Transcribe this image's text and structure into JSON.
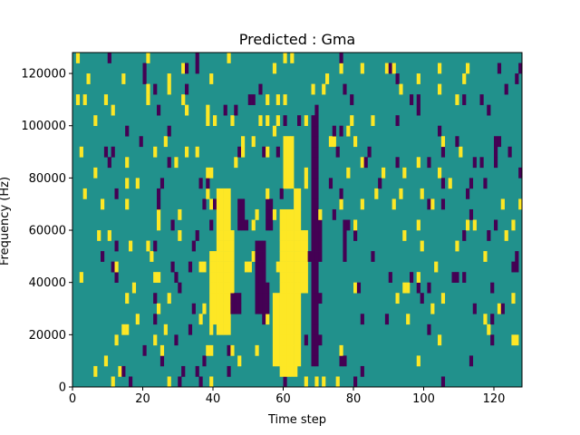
{
  "chart_data": {
    "type": "heatmap",
    "title": "Predicted : Gma",
    "xlabel": "Time step",
    "ylabel": "Frequency (Hz)",
    "xlim": [
      0,
      128
    ],
    "ylim": [
      0,
      128000
    ],
    "xticks": [
      0,
      20,
      40,
      60,
      80,
      100,
      120
    ],
    "yticks": [
      0,
      20000,
      40000,
      60000,
      80000,
      100000,
      120000
    ],
    "ytick_labels": [
      "0",
      "20000",
      "40000",
      "60000",
      "80000",
      "100000",
      "120000"
    ],
    "colormap": "viridis",
    "colors": {
      "low": "#440154",
      "mid": "#21918c",
      "high": "#fde725"
    },
    "legend": "none",
    "grid": false,
    "time_steps": 128,
    "frequency_bins": 32,
    "dominant_value": "mid",
    "high_blocks": [
      {
        "t": [
          41,
          45
        ],
        "f": [
          20000,
          74000
        ]
      },
      {
        "t": [
          39,
          41
        ],
        "f": [
          26000,
          52000
        ]
      },
      {
        "t": [
          44,
          46
        ],
        "f": [
          30000,
          58000
        ]
      },
      {
        "t": [
          59,
          64
        ],
        "f": [
          4000,
          66000
        ]
      },
      {
        "t": [
          57,
          59
        ],
        "f": [
          10000,
          34000
        ]
      },
      {
        "t": [
          63,
          65
        ],
        "f": [
          8000,
          74000
        ]
      },
      {
        "t": [
          60,
          63
        ],
        "f": [
          78000,
          94000
        ]
      },
      {
        "t": [
          65,
          67
        ],
        "f": [
          36000,
          58000
        ]
      }
    ],
    "low_blocks": [
      {
        "t": [
          68,
          70
        ],
        "f": [
          8000,
          104000
        ]
      },
      {
        "t": [
          70,
          71
        ],
        "f": [
          48000,
          64000
        ]
      },
      {
        "t": [
          52,
          55
        ],
        "f": [
          28000,
          54000
        ]
      },
      {
        "t": [
          54,
          56
        ],
        "f": [
          28000,
          40000
        ]
      },
      {
        "t": [
          45,
          48
        ],
        "f": [
          30000,
          34000
        ]
      },
      {
        "t": [
          47,
          49
        ],
        "f": [
          60000,
          72000
        ]
      },
      {
        "t": [
          55,
          57
        ],
        "f": [
          62000,
          70000
        ]
      },
      {
        "t": [
          77,
          78
        ],
        "f": [
          50000,
          62000
        ]
      }
    ]
  }
}
